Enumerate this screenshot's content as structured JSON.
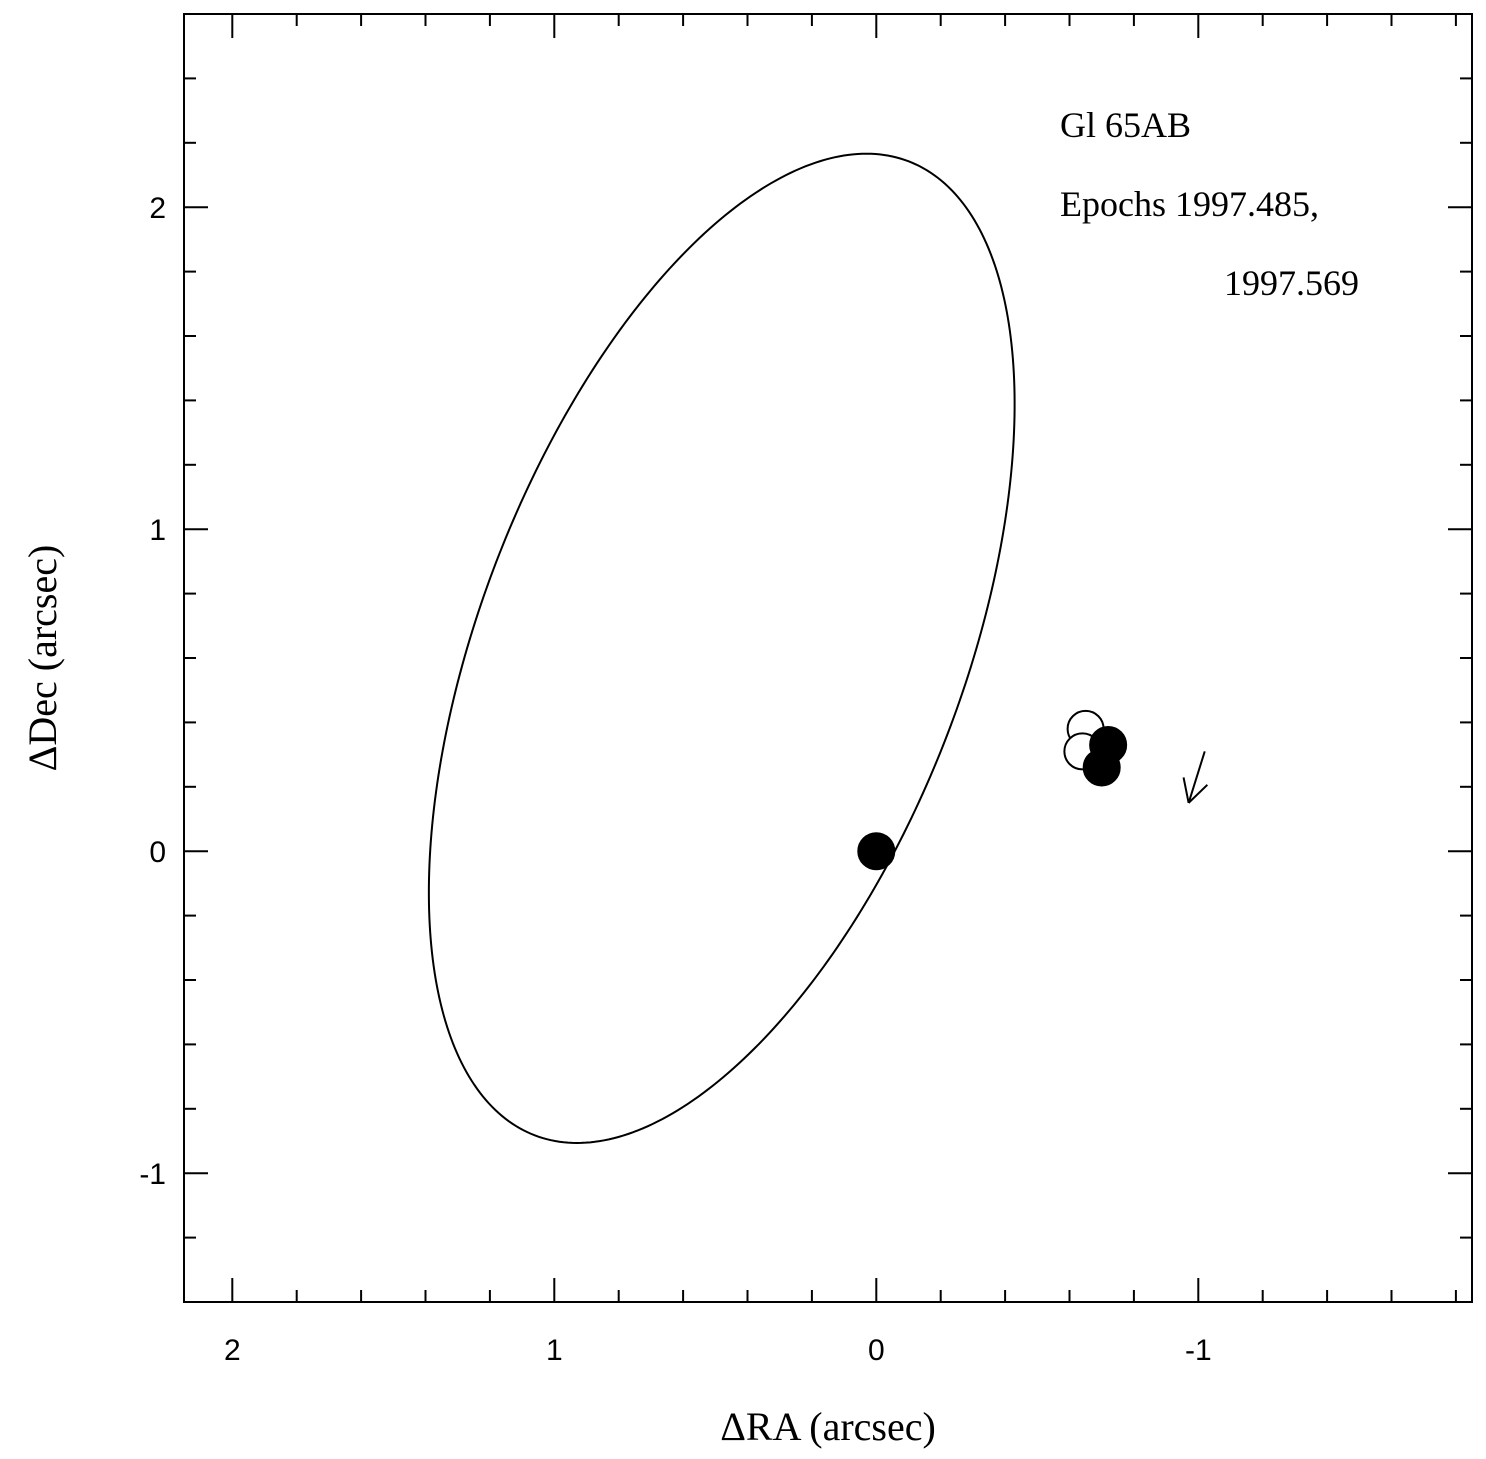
{
  "chart_data": {
    "type": "scatter",
    "title": "",
    "xlabel": "ΔRA (arcsec)",
    "ylabel": "ΔDec (arcsec)",
    "xlim": [
      2.15,
      -1.85
    ],
    "ylim": [
      -1.4,
      2.6
    ],
    "x_axis_reversed": true,
    "x_ticks": [
      2,
      1,
      0,
      -1
    ],
    "x_tick_labels": [
      "2",
      "1",
      "0",
      "-1"
    ],
    "y_ticks": [
      -1,
      0,
      1,
      2
    ],
    "y_tick_labels": [
      "-1",
      "0",
      "1",
      "2"
    ],
    "grid": false,
    "legend": "none",
    "annotations": [
      "Gl 65AB",
      "Epochs 1997.485,",
      "1997.569"
    ],
    "primary": {
      "x": 0.0,
      "y": 0.0,
      "marker": "filled"
    },
    "series": [
      {
        "marker": "open",
        "points": [
          {
            "x": -0.65,
            "y": 0.38
          },
          {
            "x": -0.64,
            "y": 0.31
          }
        ]
      },
      {
        "marker": "filled",
        "points": [
          {
            "x": -0.72,
            "y": 0.33
          },
          {
            "x": -0.7,
            "y": 0.26
          }
        ]
      }
    ],
    "orbit": {
      "center": [
        0.48,
        0.63
      ],
      "semi_axes": [
        0.75,
        1.62
      ],
      "tilt_deg": 21
    },
    "direction_arrow": {
      "from": [
        -1.02,
        0.31
      ],
      "to": [
        -0.97,
        0.15
      ]
    }
  }
}
